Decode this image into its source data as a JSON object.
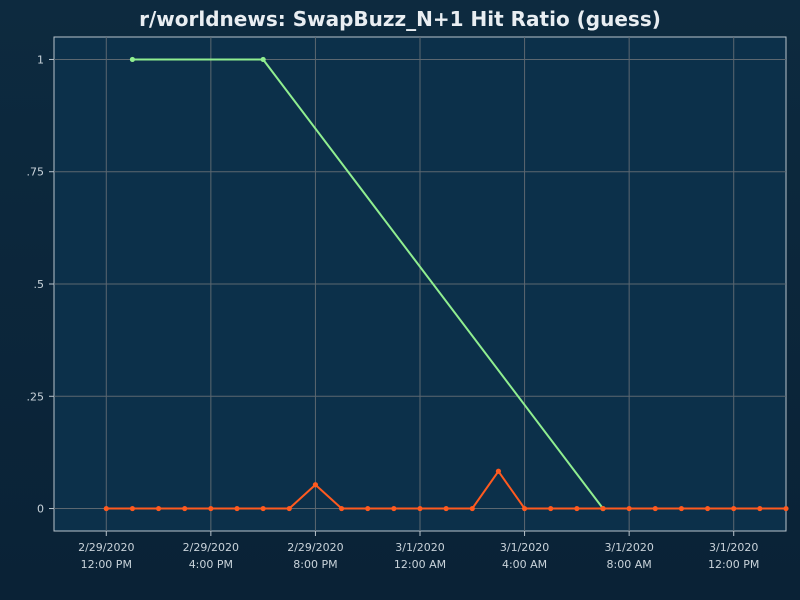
{
  "chart_data": {
    "type": "line",
    "title": "r/worldnews: SwapBuzz_N+1 Hit Ratio (guess)",
    "xlabel": "",
    "ylabel": "",
    "x_axis_type": "datetime",
    "x_range": [
      "2020-02-29T10:00:00",
      "2020-03-01T14:00:00"
    ],
    "ylim": [
      -0.05,
      1.05
    ],
    "grid": true,
    "legend": "none",
    "yticks": [
      {
        "value": 0,
        "label": "0"
      },
      {
        "value": 0.25,
        "label": ".25"
      },
      {
        "value": 0.5,
        "label": ".5"
      },
      {
        "value": 0.75,
        "label": ".75"
      },
      {
        "value": 1,
        "label": "1"
      }
    ],
    "xticks": [
      {
        "x": "2020-02-29T12:00:00",
        "line1": "2/29/2020",
        "line2": "12:00 PM"
      },
      {
        "x": "2020-02-29T16:00:00",
        "line1": "2/29/2020",
        "line2": "4:00 PM"
      },
      {
        "x": "2020-02-29T20:00:00",
        "line1": "2/29/2020",
        "line2": "8:00 PM"
      },
      {
        "x": "2020-03-01T00:00:00",
        "line1": "3/1/2020",
        "line2": "12:00 AM"
      },
      {
        "x": "2020-03-01T04:00:00",
        "line1": "3/1/2020",
        "line2": "4:00 AM"
      },
      {
        "x": "2020-03-01T08:00:00",
        "line1": "3/1/2020",
        "line2": "8:00 AM"
      },
      {
        "x": "2020-03-01T12:00:00",
        "line1": "3/1/2020",
        "line2": "12:00 PM"
      }
    ],
    "series": [
      {
        "color": "#90ee90",
        "points": [
          {
            "x": "2020-02-29T13:00:00",
            "y": 1
          },
          {
            "x": "2020-02-29T18:00:00",
            "y": 1
          },
          {
            "x": "2020-03-01T07:00:00",
            "y": 0
          }
        ]
      },
      {
        "color": "#ff5a1f",
        "points": [
          {
            "x": "2020-02-29T12:00:00",
            "y": 0
          },
          {
            "x": "2020-02-29T13:00:00",
            "y": 0
          },
          {
            "x": "2020-02-29T14:00:00",
            "y": 0
          },
          {
            "x": "2020-02-29T15:00:00",
            "y": 0
          },
          {
            "x": "2020-02-29T16:00:00",
            "y": 0
          },
          {
            "x": "2020-02-29T17:00:00",
            "y": 0
          },
          {
            "x": "2020-02-29T18:00:00",
            "y": 0
          },
          {
            "x": "2020-02-29T19:00:00",
            "y": 0
          },
          {
            "x": "2020-02-29T20:00:00",
            "y": 0.053
          },
          {
            "x": "2020-02-29T21:00:00",
            "y": 0
          },
          {
            "x": "2020-02-29T22:00:00",
            "y": 0
          },
          {
            "x": "2020-02-29T23:00:00",
            "y": 0
          },
          {
            "x": "2020-03-01T00:00:00",
            "y": 0
          },
          {
            "x": "2020-03-01T01:00:00",
            "y": 0
          },
          {
            "x": "2020-03-01T02:00:00",
            "y": 0
          },
          {
            "x": "2020-03-01T03:00:00",
            "y": 0.083
          },
          {
            "x": "2020-03-01T04:00:00",
            "y": 0
          },
          {
            "x": "2020-03-01T05:00:00",
            "y": 0
          },
          {
            "x": "2020-03-01T06:00:00",
            "y": 0
          },
          {
            "x": "2020-03-01T07:00:00",
            "y": 0
          },
          {
            "x": "2020-03-01T08:00:00",
            "y": 0
          },
          {
            "x": "2020-03-01T09:00:00",
            "y": 0
          },
          {
            "x": "2020-03-01T10:00:00",
            "y": 0
          },
          {
            "x": "2020-03-01T11:00:00",
            "y": 0
          },
          {
            "x": "2020-03-01T12:00:00",
            "y": 0
          },
          {
            "x": "2020-03-01T13:00:00",
            "y": 0
          },
          {
            "x": "2020-03-01T14:00:00",
            "y": 0
          }
        ]
      }
    ]
  },
  "colors": {
    "plot_bg": "#0c304a",
    "axis": "#b9c4cc",
    "grid": "#5c6770"
  }
}
